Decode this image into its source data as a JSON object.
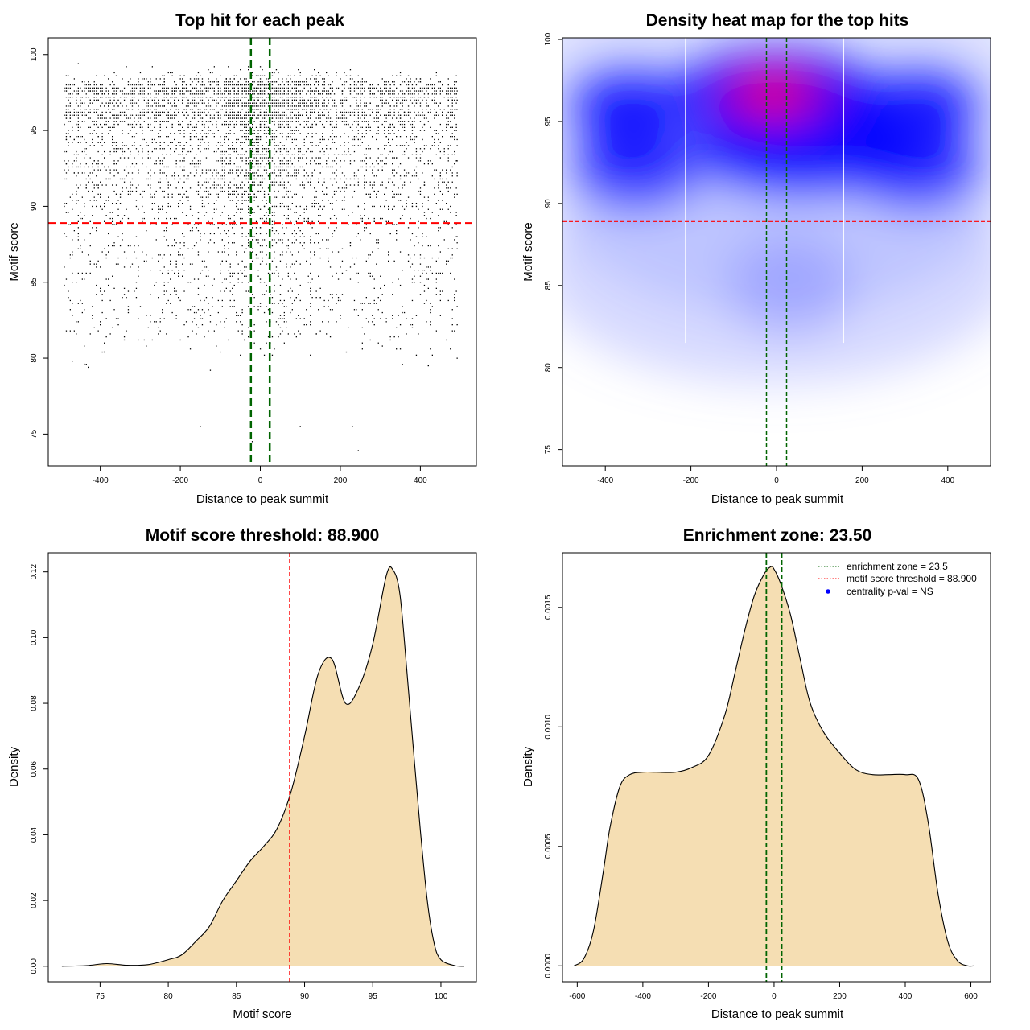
{
  "chart_data": [
    {
      "type": "scatter",
      "title": "Top hit for each peak",
      "xlabel": "Distance to peak summit",
      "ylabel": "Motif score",
      "xlim": [
        -530,
        540
      ],
      "ylim": [
        72.9,
        101.1
      ],
      "xticks": [
        -400,
        -200,
        0,
        200,
        400
      ],
      "yticks": [
        75,
        80,
        85,
        90,
        95,
        100
      ],
      "threshold_y": 88.9,
      "zone_x": [
        -23.5,
        23.5
      ],
      "outliers": [
        [
          -150,
          75.5
        ],
        [
          100,
          75.5
        ],
        [
          -20,
          74.5
        ],
        [
          230,
          75.5
        ],
        [
          245,
          73.9
        ],
        [
          -470,
          79.8
        ],
        [
          -390,
          80.4
        ],
        [
          420,
          79.5
        ],
        [
          -440,
          79.6
        ],
        [
          -430,
          79.4
        ]
      ],
      "point_color": "#000000",
      "threshold_color": "#ff0000",
      "zone_color": "#006400"
    },
    {
      "type": "heatmap",
      "title": "Density heat map for the top hits",
      "xlabel": "Distance to peak summit",
      "ylabel": "Motif score",
      "xlim": [
        -500,
        500
      ],
      "ylim": [
        74,
        100.1
      ],
      "xticks": [
        -400,
        -200,
        0,
        200,
        400
      ],
      "yticks": [
        75,
        80,
        85,
        90,
        95,
        100
      ],
      "threshold_y": 88.9,
      "zone_x": [
        -23.5,
        23.5
      ],
      "colors": [
        "#ffffff",
        "#0000ff",
        "#ff0000"
      ]
    },
    {
      "type": "area",
      "title": "Motif score threshold: 88.900",
      "xlabel": "Motif score",
      "ylabel": "Density",
      "xlim": [
        71.2,
        102.6
      ],
      "ylim": [
        -0.0047,
        0.1258
      ],
      "xticks": [
        75,
        80,
        85,
        90,
        95,
        100
      ],
      "yticks": [
        0.0,
        0.02,
        0.04,
        0.06,
        0.08,
        0.1,
        0.12
      ],
      "ytick_labels": [
        "0.00",
        "0.02",
        "0.04",
        "0.06",
        "0.08",
        "0.10",
        "0.12"
      ],
      "threshold_x": 88.9,
      "x": [
        72.2,
        74,
        75.5,
        77,
        78.5,
        80,
        81,
        82,
        83,
        84,
        85,
        86,
        87,
        88,
        89,
        90,
        91,
        92,
        93,
        94,
        95,
        96,
        96.5,
        97,
        97.5,
        98,
        98.5,
        99,
        99.5,
        100,
        101,
        101.7
      ],
      "y": [
        0.0,
        0.0002,
        0.0008,
        0.0003,
        0.0005,
        0.002,
        0.0035,
        0.0075,
        0.012,
        0.02,
        0.026,
        0.032,
        0.0365,
        0.042,
        0.053,
        0.07,
        0.089,
        0.0935,
        0.08,
        0.085,
        0.098,
        0.119,
        0.1205,
        0.113,
        0.09,
        0.065,
        0.041,
        0.02,
        0.007,
        0.002,
        0.0002,
        0.0
      ],
      "fill_color": "#f5deb3",
      "threshold_color": "#ff0000"
    },
    {
      "type": "area",
      "title": "Enrichment zone: 23.50",
      "xlabel": "Distance to peak summit",
      "ylabel": "Density",
      "xlim": [
        -645,
        660
      ],
      "ylim": [
        -6.65e-05,
        0.0017283
      ],
      "xticks": [
        -600,
        -400,
        -200,
        0,
        200,
        400,
        600
      ],
      "yticks": [
        0.0,
        0.0005,
        0.001,
        0.0015
      ],
      "ytick_labels": [
        "0.0000",
        "0.0005",
        "0.0010",
        "0.0015"
      ],
      "zone_x": [
        -23.5,
        23.5
      ],
      "x": [
        -610,
        -580,
        -550,
        -520,
        -500,
        -470,
        -440,
        -400,
        -360,
        -300,
        -250,
        -200,
        -150,
        -120,
        -90,
        -60,
        -30,
        -10,
        0,
        20,
        50,
        80,
        110,
        150,
        200,
        250,
        300,
        350,
        400,
        440,
        470,
        500,
        530,
        560,
        590,
        610
      ],
      "y": [
        0.0,
        3e-05,
        0.00015,
        0.0004,
        0.00058,
        0.00075,
        0.0008,
        0.00081,
        0.00081,
        0.00081,
        0.00083,
        0.00088,
        0.00105,
        0.00122,
        0.0014,
        0.00155,
        0.00164,
        0.00167,
        0.00166,
        0.0016,
        0.00147,
        0.00128,
        0.0011,
        0.00098,
        0.00089,
        0.00082,
        0.0008,
        0.0008,
        0.0008,
        0.00078,
        0.0006,
        0.0003,
        0.0001,
        2e-05,
        0.0,
        0.0
      ],
      "fill_color": "#f5deb3",
      "zone_color": "#006400",
      "legend": {
        "position": "top-right",
        "items": [
          {
            "label": "enrichment zone = 23.5",
            "color": "#006400",
            "style": "dotted-line"
          },
          {
            "label": "motif score threshold = 88.900",
            "color": "#ff0000",
            "style": "dotted-line"
          },
          {
            "label": "centrality p-val = NS",
            "color": "#0000ff",
            "style": "point"
          }
        ]
      }
    }
  ]
}
